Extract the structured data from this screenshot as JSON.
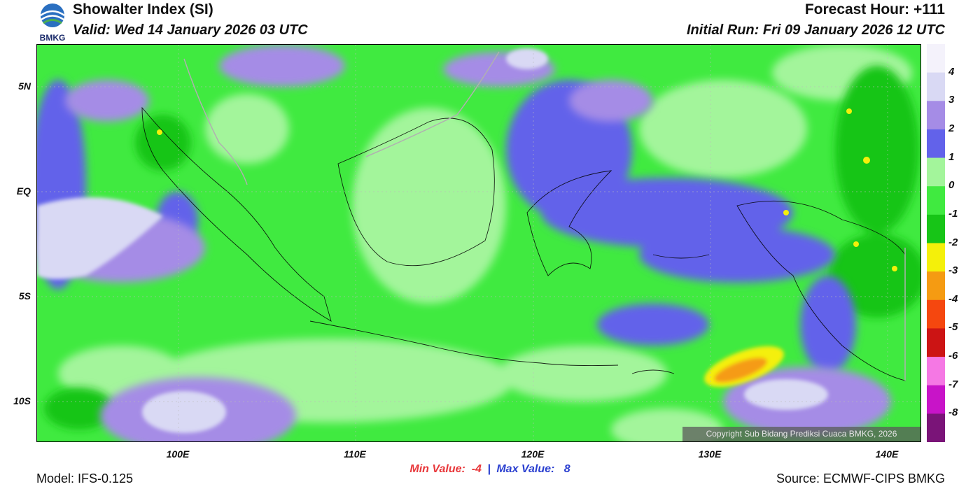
{
  "header": {
    "title": "Showalter Index (SI)",
    "valid": "Valid: Wed 14 January 2026 03 UTC",
    "forecast_hour": "Forecast Hour: +111",
    "initial_run": "Initial Run: Fri 09 January 2026 12 UTC"
  },
  "logo": {
    "text": "BMKG",
    "icon": "bmkg-logo-icon"
  },
  "axes": {
    "lat_labels": [
      "5N",
      "EQ",
      "5S",
      "10S"
    ],
    "lon_labels": [
      "100E",
      "110E",
      "120E",
      "130E",
      "140E"
    ]
  },
  "colorbar": {
    "labels": [
      "4",
      "3",
      "2",
      "1",
      "0",
      "-1",
      "-2",
      "-3",
      "-4",
      "-5",
      "-6",
      "-7",
      "-8"
    ],
    "colors": [
      "#f4f2fb",
      "#d9d9f4",
      "#a58ce6",
      "#6262ea",
      "#a3f59b",
      "#40ea40",
      "#17c517",
      "#f4f00a",
      "#f59b12",
      "#f5470f",
      "#cc1414",
      "#f578e4",
      "#c814c8",
      "#7a1478"
    ]
  },
  "stats": {
    "min_label": "Min Value:",
    "min_value": "-4",
    "separator": "|",
    "max_label": "Max Value:",
    "max_value": "8"
  },
  "footer": {
    "model": "Model: IFS-0.125",
    "source": "Source: ECMWF-CIPS BMKG",
    "copyright": "Copyright Sub Bidang Prediksi Cuaca BMKG, 2026"
  }
}
